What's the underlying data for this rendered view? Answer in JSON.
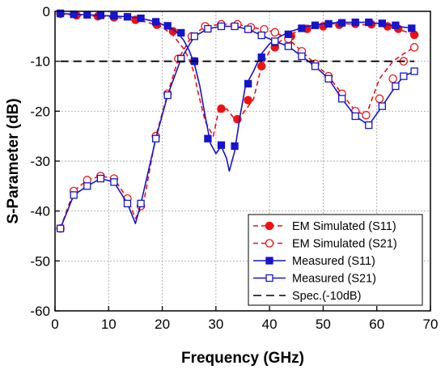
{
  "chart_data": {
    "type": "line",
    "title": "",
    "xlabel": "Frequency (GHz)",
    "ylabel": "S-Parameter (dB)",
    "xlim": [
      0,
      70
    ],
    "ylim": [
      -60,
      0
    ],
    "xticks": [
      0,
      10,
      20,
      30,
      40,
      50,
      60,
      70
    ],
    "yticks": [
      0,
      -10,
      -20,
      -30,
      -40,
      -50,
      -60
    ],
    "grid": true,
    "legend_position": "bottom-right",
    "series": [
      {
        "name": "EM Simulated (S11)",
        "color": "#ee1111",
        "line_style": "dashed",
        "marker": "filled-circle",
        "x": [
          1,
          2,
          4,
          6,
          8,
          10,
          12,
          14,
          17,
          20,
          22,
          24,
          25,
          26,
          26.5,
          28,
          29.5,
          30.5,
          32,
          33.5,
          35,
          37,
          38.5,
          40,
          42,
          44,
          46,
          48,
          50,
          52,
          54,
          56,
          58,
          60,
          62,
          64,
          66,
          67
        ],
        "y": [
          -0.5,
          -0.6,
          -0.8,
          -0.9,
          -1.0,
          -1.1,
          -1.3,
          -1.5,
          -2.1,
          -3.2,
          -4.8,
          -7.5,
          -9.5,
          -12.5,
          -15.5,
          -22.0,
          -25.0,
          -20.0,
          -19.5,
          -21.6,
          -20.5,
          -17.6,
          -11.0,
          -8.0,
          -6.0,
          -4.6,
          -3.5,
          -2.9,
          -2.6,
          -2.5,
          -2.5,
          -2.6,
          -2.7,
          -2.9,
          -3.2,
          -3.6,
          -4.3,
          -4.9
        ],
        "markers_x": [
          1,
          4,
          8,
          11,
          15,
          19,
          22,
          26,
          31,
          34,
          36,
          38.5,
          41,
          44,
          47,
          50,
          53,
          56,
          59,
          62,
          64,
          67
        ],
        "markers_y": [
          -0.5,
          -0.8,
          -1.0,
          -1.2,
          -1.7,
          -2.7,
          -4.0,
          -10.0,
          -19.5,
          -21.6,
          -17.8,
          -11.0,
          -7.2,
          -5.0,
          -3.5,
          -3.0,
          -2.7,
          -2.5,
          -2.6,
          -3.0,
          -3.5,
          -4.7
        ]
      },
      {
        "name": "EM Simulated (S21)",
        "color": "#ee1111",
        "line_style": "dashed",
        "marker": "open-circle",
        "x": [
          1,
          3.5,
          6,
          8.5,
          11,
          13.5,
          15,
          16.5,
          18.8,
          21,
          23,
          25.5,
          28,
          31,
          34,
          36.5,
          39,
          41,
          43.5,
          46,
          48.5,
          51,
          53.5,
          56,
          58,
          60.5,
          63,
          65,
          66.5,
          67
        ],
        "y": [
          -43.5,
          -36.0,
          -33.8,
          -33.0,
          -33.5,
          -37.5,
          -41.5,
          -38.5,
          -25.0,
          -16.5,
          -9.5,
          -5.0,
          -3.0,
          -2.6,
          -2.6,
          -3.2,
          -3.6,
          -4.2,
          -5.5,
          -8.0,
          -10.5,
          -13.0,
          -16.5,
          -20.0,
          -20.8,
          -13.5,
          -10.0,
          -8.5,
          -7.5,
          -7.2
        ],
        "markers_x": [
          1,
          3.5,
          6,
          8.5,
          11,
          13.5,
          16,
          18.8,
          21,
          23,
          25.5,
          28,
          31,
          34,
          36.5,
          39,
          41,
          43.5,
          46,
          48.5,
          51,
          53.5,
          56,
          58,
          60.5,
          63,
          65,
          67
        ],
        "markers_y": [
          -43.5,
          -36.0,
          -33.8,
          -33.0,
          -33.5,
          -37.5,
          -39.0,
          -25.0,
          -16.5,
          -9.5,
          -5.0,
          -3.0,
          -2.6,
          -2.6,
          -3.2,
          -3.6,
          -4.2,
          -5.5,
          -8.0,
          -10.5,
          -13.0,
          -16.5,
          -20.0,
          -20.8,
          -17.5,
          -13.5,
          -10.0,
          -7.2
        ]
      },
      {
        "name": "Measured (S11)",
        "color": "#1515cc",
        "line_style": "solid",
        "marker": "filled-square",
        "x": [
          1,
          2,
          4,
          6,
          8,
          10,
          12,
          14,
          16,
          18,
          20,
          22,
          23,
          24,
          25,
          26,
          27,
          28,
          29,
          30,
          31,
          32,
          32.5,
          33.5,
          34.5,
          35.5,
          37,
          38.5,
          40,
          42,
          44,
          46,
          48,
          50,
          52,
          54,
          56,
          58,
          60,
          62,
          64,
          66,
          67
        ],
        "y": [
          -0.4,
          -0.5,
          -0.6,
          -0.7,
          -0.8,
          -0.9,
          -1.0,
          -1.1,
          -1.4,
          -1.9,
          -2.6,
          -3.6,
          -4.5,
          -5.8,
          -7.8,
          -10.5,
          -15.0,
          -21.0,
          -26.5,
          -28.5,
          -27.0,
          -29.5,
          -32.0,
          -28.0,
          -21.0,
          -15.0,
          -12.0,
          -8.5,
          -6.5,
          -5.0,
          -4.0,
          -3.3,
          -2.8,
          -2.5,
          -2.3,
          -2.2,
          -2.2,
          -2.2,
          -2.4,
          -2.7,
          -3.0,
          -3.3,
          -3.5
        ],
        "markers_x": [
          1,
          3.5,
          6,
          8.5,
          11,
          13.5,
          16,
          18.8,
          21,
          23.5,
          26,
          28.5,
          31,
          33.5,
          36,
          38.5,
          41,
          43.5,
          46,
          48.5,
          51,
          53.5,
          56,
          58.5,
          61,
          63.5,
          66.5
        ],
        "markers_y": [
          -0.4,
          -0.6,
          -0.7,
          -0.8,
          -0.9,
          -1.1,
          -1.4,
          -2.1,
          -2.9,
          -4.3,
          -10.0,
          -25.5,
          -26.8,
          -27.0,
          -14.5,
          -9.2,
          -6.2,
          -4.6,
          -3.4,
          -2.8,
          -2.5,
          -2.3,
          -2.2,
          -2.2,
          -2.4,
          -2.8,
          -3.4
        ]
      },
      {
        "name": "Measured (S21)",
        "color": "#1515cc",
        "line_style": "solid",
        "marker": "open-square",
        "x": [
          1,
          3.5,
          6,
          8.5,
          11,
          13.5,
          15,
          16,
          18.8,
          21,
          23.5,
          26,
          28.5,
          31,
          33.5,
          36,
          38.5,
          41,
          43.5,
          46,
          48.5,
          51,
          53.5,
          56,
          58.5,
          61,
          63.5,
          65,
          67
        ],
        "y": [
          -43.5,
          -36.8,
          -35.0,
          -33.5,
          -34.2,
          -38.5,
          -42.5,
          -38.5,
          -25.5,
          -16.8,
          -9.5,
          -5.0,
          -3.5,
          -3.0,
          -3.0,
          -3.6,
          -4.8,
          -6.0,
          -7.0,
          -9.0,
          -11.0,
          -13.5,
          -17.5,
          -21.0,
          -22.8,
          -19.0,
          -15.0,
          -13.0,
          -12.0
        ],
        "markers_x": [
          1,
          3.5,
          6,
          8.5,
          11,
          13.5,
          16,
          18.8,
          21,
          23.5,
          26,
          28.5,
          31,
          33.5,
          36,
          38.5,
          41,
          43.5,
          46,
          48.5,
          51,
          53.5,
          56,
          58.5,
          61,
          63.5,
          65,
          67
        ],
        "markers_y": [
          -43.5,
          -36.8,
          -35.0,
          -33.5,
          -34.2,
          -38.5,
          -38.5,
          -25.5,
          -16.8,
          -9.5,
          -5.0,
          -3.5,
          -3.0,
          -3.0,
          -3.6,
          -4.8,
          -6.0,
          -7.0,
          -9.0,
          -11.0,
          -13.5,
          -17.5,
          -21.0,
          -22.8,
          -19.0,
          -15.0,
          -13.0,
          -12.0
        ]
      },
      {
        "name": "Spec.(-10dB)",
        "color": "#000000",
        "line_style": "long-dash",
        "marker": "none",
        "x": [
          1,
          67
        ],
        "y": [
          -10,
          -10
        ],
        "markers_x": [],
        "markers_y": []
      }
    ]
  }
}
